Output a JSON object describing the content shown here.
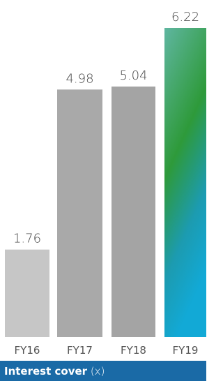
{
  "chart_data": {
    "type": "bar",
    "title": "Interest cover",
    "title_unit": "(x)",
    "categories": [
      "FY16",
      "FY17",
      "FY18",
      "FY19"
    ],
    "values": [
      1.76,
      4.98,
      5.04,
      6.22
    ],
    "colors": [
      "#c6c6c6",
      "#a9a9a9",
      "#a4a4a4",
      "#2f9e5a"
    ]
  }
}
